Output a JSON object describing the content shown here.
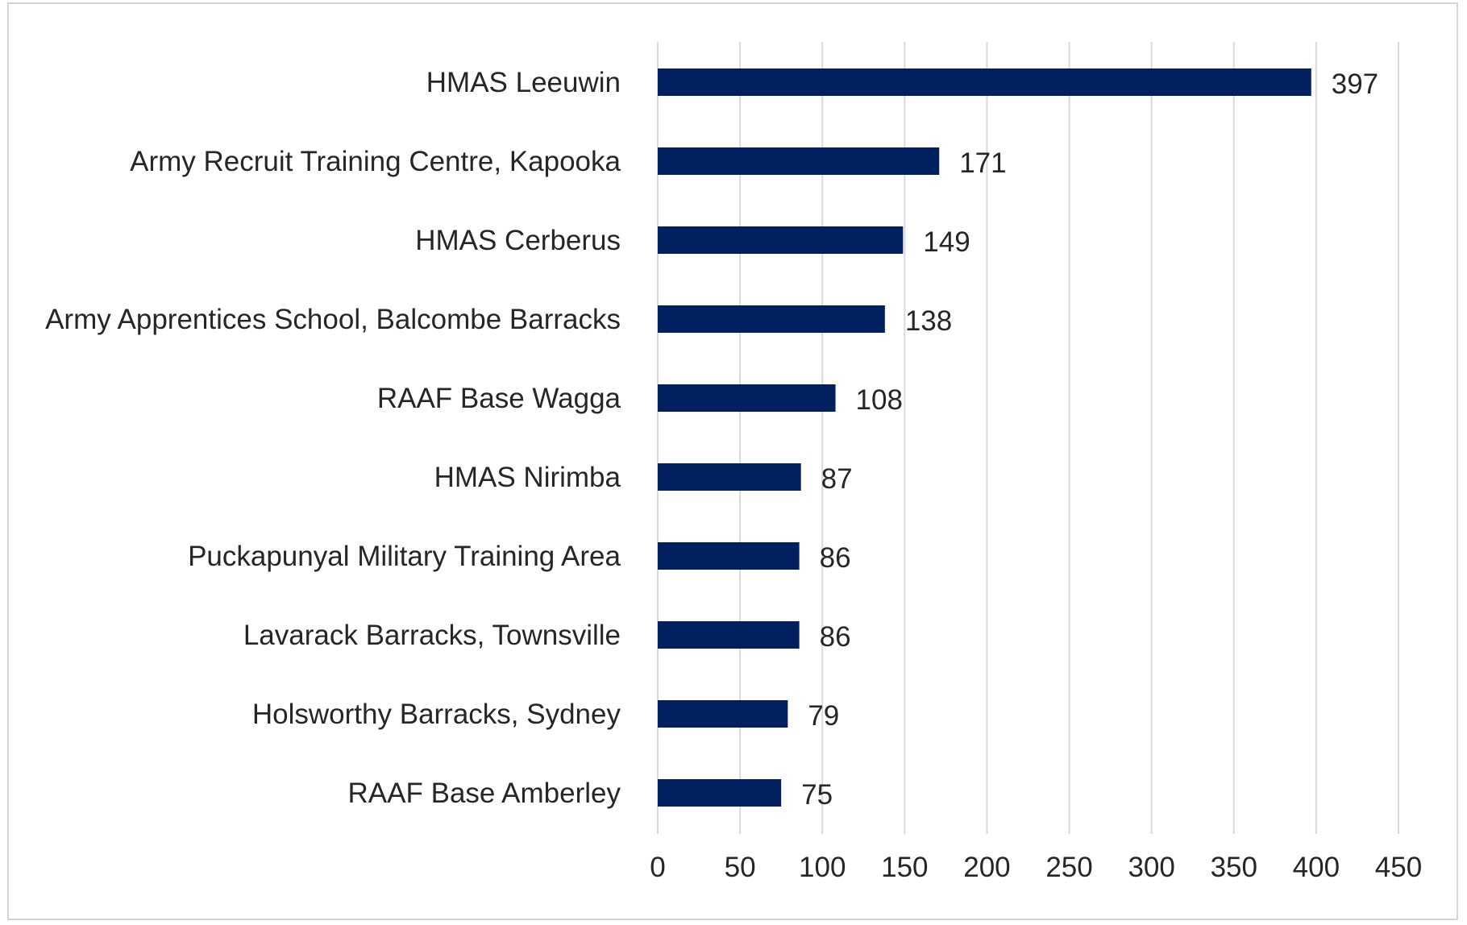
{
  "chart_data": {
    "type": "bar",
    "orientation": "horizontal",
    "categories": [
      "HMAS Leeuwin",
      "Army Recruit Training Centre, Kapooka",
      "HMAS Cerberus",
      "Army Apprentices School, Balcombe Barracks",
      "RAAF Base Wagga",
      "HMAS Nirimba",
      "Puckapunyal Military Training Area",
      "Lavarack Barracks, Townsville",
      "Holsworthy Barracks, Sydney",
      "RAAF Base Amberley"
    ],
    "values": [
      397,
      171,
      149,
      138,
      108,
      87,
      86,
      86,
      79,
      75
    ],
    "data_labels": [
      "397",
      "171",
      "149",
      "138",
      "108",
      "87",
      "86",
      "86",
      "79",
      "75"
    ],
    "xlim": [
      0,
      450
    ],
    "x_ticks": [
      0,
      50,
      100,
      150,
      200,
      250,
      300,
      350,
      400,
      450
    ],
    "x_tick_labels": [
      "0",
      "50",
      "100",
      "150",
      "200",
      "250",
      "300",
      "350",
      "400",
      "450"
    ],
    "grid": "vertical",
    "legend": "none",
    "bar_color": "#002060",
    "grid_color": "#d9d9d9",
    "text_color": "#262626",
    "border_color": "#d4d4d4"
  }
}
